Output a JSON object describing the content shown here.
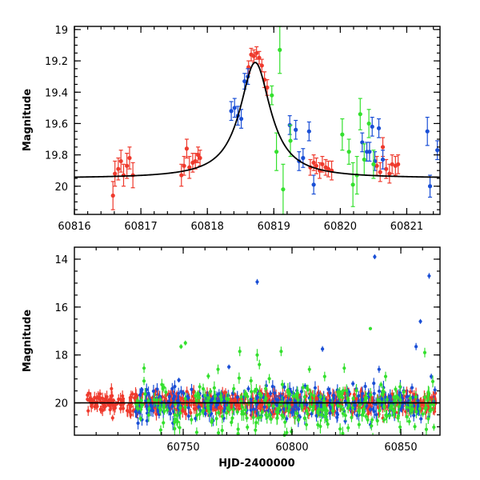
{
  "chart_data": [
    {
      "type": "scatter",
      "panel": "top",
      "title": "",
      "xlabel": "",
      "ylabel": "Magnitude",
      "xlim": [
        60816,
        60821.5
      ],
      "ylim": [
        20.18,
        18.98
      ],
      "y_inverted": true,
      "x_ticks": [
        60816,
        60817,
        60818,
        60819,
        60820,
        60821
      ],
      "y_ticks": [
        19,
        19.2,
        19.4,
        19.6,
        19.8,
        20
      ],
      "x_tick_labels": [
        "60816",
        "60817",
        "60818",
        "60819",
        "60820",
        "60821"
      ],
      "y_tick_labels": [
        "19",
        "19.2",
        "19.4",
        "19.6",
        "19.8",
        "20"
      ],
      "grid": false,
      "series": [
        {
          "color": "#ef3a2d",
          "points": [
            [
              60816.58,
              20.06,
              0.09
            ],
            [
              60816.61,
              19.92,
              0.08
            ],
            [
              60816.66,
              19.89,
              0.07
            ],
            [
              60816.7,
              19.84,
              0.07
            ],
            [
              60816.74,
              19.93,
              0.07
            ],
            [
              60816.79,
              19.87,
              0.08
            ],
            [
              60816.83,
              19.82,
              0.07
            ],
            [
              60816.88,
              19.93,
              0.08
            ],
            [
              60817.61,
              19.93,
              0.07
            ],
            [
              60817.65,
              19.87,
              0.06
            ],
            [
              60817.69,
              19.76,
              0.06
            ],
            [
              60817.73,
              19.88,
              0.07
            ],
            [
              60817.78,
              19.85,
              0.06
            ],
            [
              60817.82,
              19.84,
              0.05
            ],
            [
              60817.86,
              19.8,
              0.05
            ],
            [
              60817.89,
              19.82,
              0.05
            ],
            [
              60818.62,
              19.24,
              0.04
            ],
            [
              60818.66,
              19.16,
              0.04
            ],
            [
              60818.7,
              19.17,
              0.04
            ],
            [
              60818.74,
              19.15,
              0.04
            ],
            [
              60818.78,
              19.18,
              0.04
            ],
            [
              60818.82,
              19.23,
              0.04
            ],
            [
              60818.86,
              19.32,
              0.05
            ],
            [
              60818.9,
              19.37,
              0.05
            ],
            [
              60819.55,
              19.88,
              0.05
            ],
            [
              60819.6,
              19.85,
              0.05
            ],
            [
              60819.64,
              19.87,
              0.05
            ],
            [
              60819.69,
              19.9,
              0.05
            ],
            [
              60819.73,
              19.86,
              0.05
            ],
            [
              60819.78,
              19.88,
              0.05
            ],
            [
              60819.82,
              19.89,
              0.05
            ],
            [
              60819.87,
              19.9,
              0.06
            ],
            [
              60820.55,
              19.87,
              0.06
            ],
            [
              60820.6,
              19.91,
              0.06
            ],
            [
              60820.64,
              19.75,
              0.06
            ],
            [
              60820.69,
              19.89,
              0.06
            ],
            [
              60820.74,
              19.92,
              0.06
            ],
            [
              60820.78,
              19.86,
              0.06
            ],
            [
              60820.83,
              19.87,
              0.06
            ],
            [
              60820.87,
              19.86,
              0.06
            ]
          ]
        },
        {
          "color": "#1a4fd6",
          "points": [
            [
              60818.36,
              19.52,
              0.06
            ],
            [
              60818.41,
              19.5,
              0.06
            ],
            [
              60818.46,
              19.55,
              0.06
            ],
            [
              60818.51,
              19.57,
              0.06
            ],
            [
              60818.56,
              19.33,
              0.05
            ],
            [
              60818.61,
              19.3,
              0.05
            ],
            [
              60819.24,
              19.61,
              0.06
            ],
            [
              60819.33,
              19.64,
              0.06
            ],
            [
              60819.38,
              19.84,
              0.06
            ],
            [
              60819.44,
              19.82,
              0.06
            ],
            [
              60819.53,
              19.65,
              0.06
            ],
            [
              60819.6,
              19.99,
              0.06
            ],
            [
              60820.33,
              19.72,
              0.06
            ],
            [
              60820.4,
              19.78,
              0.06
            ],
            [
              60820.44,
              19.78,
              0.06
            ],
            [
              60820.48,
              19.62,
              0.06
            ],
            [
              60820.52,
              19.84,
              0.06
            ],
            [
              60820.58,
              19.63,
              0.06
            ],
            [
              60820.64,
              19.83,
              0.06
            ],
            [
              60821.31,
              19.65,
              0.09
            ],
            [
              60821.35,
              20.0,
              0.07
            ],
            [
              60821.46,
              19.77,
              0.06
            ]
          ]
        },
        {
          "color": "#34e02e",
          "points": [
            [
              60818.97,
              19.42,
              0.06
            ],
            [
              60819.04,
              19.78,
              0.12
            ],
            [
              60819.09,
              19.13,
              0.15
            ],
            [
              60819.14,
              20.02,
              0.16
            ],
            [
              60819.25,
              19.71,
              0.1
            ],
            [
              60820.03,
              19.67,
              0.1
            ],
            [
              60820.13,
              19.78,
              0.08
            ],
            [
              60820.19,
              19.99,
              0.14
            ],
            [
              60820.25,
              19.93,
              0.12
            ],
            [
              60820.3,
              19.54,
              0.1
            ],
            [
              60820.36,
              19.83,
              0.1
            ],
            [
              60820.43,
              19.6,
              0.09
            ],
            [
              60820.5,
              19.86,
              0.09
            ]
          ]
        }
      ],
      "model_curve": {
        "type": "lorentzian",
        "t0": 60818.72,
        "peak": 19.21,
        "baseline": 19.95,
        "width": 0.28
      }
    },
    {
      "type": "scatter",
      "panel": "bottom",
      "title": "",
      "xlabel": "HJD-2400000",
      "ylabel": "Magnitude",
      "xlim": [
        60700,
        60868
      ],
      "ylim": [
        21.35,
        13.5
      ],
      "y_inverted": true,
      "x_ticks": [
        60750,
        60800,
        60850
      ],
      "y_ticks": [
        14,
        16,
        18,
        20
      ],
      "x_tick_labels": [
        "60750",
        "60800",
        "60850"
      ],
      "y_tick_labels": [
        "14",
        "16",
        "18",
        "20"
      ],
      "grid": false,
      "baseline_mag": 20.0,
      "series": [
        {
          "color": "#ef3a2d",
          "cloud": {
            "start": 60706,
            "end": 60866,
            "count": 700,
            "center": 20.0,
            "spread": 0.22,
            "seed": 11
          },
          "points": [
            [
              60706,
              19.85,
              0.1
            ],
            [
              60708,
              20.05,
              0.1
            ],
            [
              60710,
              20.1,
              0.1
            ],
            [
              60712,
              19.95,
              0.1
            ],
            [
              60714,
              20.15,
              0.1
            ],
            [
              60716,
              20.1,
              0.1
            ],
            [
              60718,
              19.9,
              0.1
            ],
            [
              60720,
              20.0,
              0.1
            ]
          ]
        },
        {
          "color": "#1a4fd6",
          "cloud": {
            "start": 60728,
            "end": 60866,
            "count": 300,
            "center": 20.05,
            "spread": 0.35,
            "seed": 23
          },
          "points": [
            [
              60784,
              14.95,
              0.12
            ],
            [
              60838,
              13.9,
              0.1
            ],
            [
              60863,
              14.7,
              0.12
            ],
            [
              60859,
              16.6,
              0.1
            ],
            [
              60857,
              17.65,
              0.15
            ],
            [
              60814,
              17.75,
              0.12
            ],
            [
              60771,
              18.5,
              0.1
            ],
            [
              60748,
              19.05,
              0.1
            ],
            [
              60731,
              19.45,
              0.1
            ],
            [
              60840,
              18.6,
              0.15
            ],
            [
              60806,
              19.3,
              0.12
            ],
            [
              60828,
              19.2,
              0.12
            ],
            [
              60864,
              18.9,
              0.12
            ]
          ]
        },
        {
          "color": "#34e02e",
          "cloud": {
            "start": 60728,
            "end": 60866,
            "count": 300,
            "center": 20.2,
            "spread": 0.5,
            "seed": 37
          },
          "points": [
            [
              60751,
              17.5,
              0.1
            ],
            [
              60749,
              17.65,
              0.1
            ],
            [
              60732,
              18.55,
              0.2
            ],
            [
              60776,
              17.85,
              0.2
            ],
            [
              60784,
              18.0,
              0.25
            ],
            [
              60785,
              18.4,
              0.2
            ],
            [
              60795,
              17.85,
              0.2
            ],
            [
              60836,
              16.9,
              0.05
            ],
            [
              60861,
              17.9,
              0.2
            ],
            [
              60824,
              18.55,
              0.2
            ],
            [
              60815,
              18.9,
              0.2
            ],
            [
              60843,
              18.9,
              0.2
            ],
            [
              60766,
              18.6,
              0.2
            ],
            [
              60808,
              18.6,
              0.15
            ]
          ]
        }
      ]
    }
  ]
}
